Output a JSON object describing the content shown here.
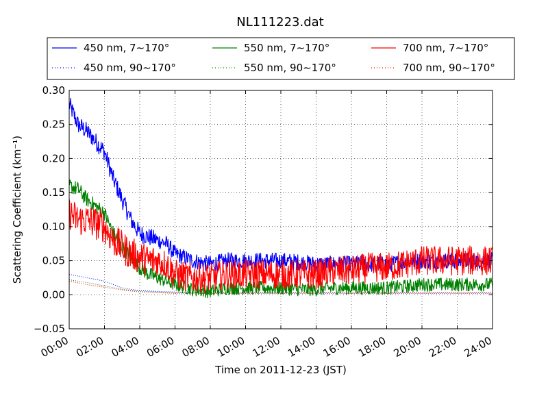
{
  "chart_data": {
    "type": "line",
    "title": "NL111223.dat",
    "xlabel": "Time on 2011-12-23 (JST)",
    "ylabel": "Scattering Coefficient (km⁻¹)",
    "xlim": [
      "00:00",
      "24:00"
    ],
    "ylim": [
      -0.05,
      0.3
    ],
    "x_ticks": [
      "00:00",
      "02:00",
      "04:00",
      "06:00",
      "08:00",
      "10:00",
      "12:00",
      "14:00",
      "16:00",
      "18:00",
      "20:00",
      "22:00",
      "24:00"
    ],
    "y_ticks": [
      "−0.05",
      "0.00",
      "0.05",
      "0.10",
      "0.15",
      "0.20",
      "0.25",
      "0.30"
    ],
    "grid": true,
    "legend_position": "top",
    "series": [
      {
        "name": "450 nm, 7∼170°",
        "color": "#0000ff",
        "style": "solid",
        "x": [
          "00:00",
          "00:30",
          "01:00",
          "01:30",
          "02:00",
          "02:30",
          "03:00",
          "03:30",
          "04:00",
          "04:30",
          "05:00",
          "05:30",
          "06:00",
          "07:00",
          "08:00",
          "09:00",
          "10:00",
          "11:00",
          "12:00",
          "13:00",
          "14:00",
          "15:00",
          "16:00",
          "17:00",
          "18:00",
          "19:00",
          "20:00",
          "21:00",
          "22:00",
          "23:00",
          "24:00"
        ],
        "y": [
          0.28,
          0.25,
          0.24,
          0.225,
          0.21,
          0.17,
          0.14,
          0.11,
          0.09,
          0.085,
          0.08,
          0.075,
          0.06,
          0.05,
          0.045,
          0.05,
          0.05,
          0.05,
          0.05,
          0.048,
          0.045,
          0.045,
          0.045,
          0.045,
          0.045,
          0.048,
          0.05,
          0.05,
          0.05,
          0.05,
          0.05
        ]
      },
      {
        "name": "450 nm, 90∼170°",
        "color": "#0000ff",
        "style": "dotted",
        "x": [
          "00:00",
          "01:00",
          "02:00",
          "03:00",
          "04:00",
          "05:00",
          "06:00",
          "08:00",
          "12:00",
          "16:00",
          "20:00",
          "24:00"
        ],
        "y": [
          0.03,
          0.025,
          0.02,
          0.01,
          0.006,
          0.005,
          0.004,
          0.003,
          0.003,
          0.003,
          0.003,
          0.003
        ]
      },
      {
        "name": "550 nm, 7∼170°",
        "color": "#008000",
        "style": "solid",
        "x": [
          "00:00",
          "00:30",
          "01:00",
          "01:30",
          "02:00",
          "02:30",
          "03:00",
          "03:30",
          "04:00",
          "04:30",
          "05:00",
          "05:30",
          "06:00",
          "07:00",
          "08:00",
          "09:00",
          "10:00",
          "11:00",
          "12:00",
          "13:00",
          "14:00",
          "15:00",
          "16:00",
          "17:00",
          "18:00",
          "19:00",
          "20:00",
          "21:00",
          "22:00",
          "23:00",
          "24:00"
        ],
        "y": [
          0.16,
          0.155,
          0.14,
          0.13,
          0.12,
          0.09,
          0.07,
          0.055,
          0.04,
          0.03,
          0.025,
          0.02,
          0.015,
          0.008,
          0.005,
          0.01,
          0.01,
          0.01,
          0.01,
          0.008,
          0.008,
          0.01,
          0.01,
          0.01,
          0.01,
          0.012,
          0.015,
          0.015,
          0.015,
          0.015,
          0.015
        ]
      },
      {
        "name": "550 nm, 90∼170°",
        "color": "#008000",
        "style": "dotted",
        "x": [
          "00:00",
          "01:00",
          "02:00",
          "03:00",
          "04:00",
          "05:00",
          "06:00",
          "08:00",
          "12:00",
          "16:00",
          "20:00",
          "24:00"
        ],
        "y": [
          0.022,
          0.018,
          0.013,
          0.008,
          0.005,
          0.004,
          0.003,
          0.002,
          0.002,
          0.002,
          0.002,
          0.002
        ]
      },
      {
        "name": "700 nm, 7∼170°",
        "color": "#ff0000",
        "style": "solid",
        "x": [
          "00:00",
          "00:30",
          "01:00",
          "01:30",
          "02:00",
          "02:30",
          "03:00",
          "03:30",
          "04:00",
          "04:30",
          "05:00",
          "05:30",
          "06:00",
          "07:00",
          "08:00",
          "09:00",
          "10:00",
          "11:00",
          "12:00",
          "13:00",
          "14:00",
          "15:00",
          "16:00",
          "17:00",
          "18:00",
          "19:00",
          "20:00",
          "21:00",
          "22:00",
          "23:00",
          "24:00"
        ],
        "y": [
          0.12,
          0.11,
          0.11,
          0.105,
          0.1,
          0.08,
          0.07,
          0.06,
          0.055,
          0.05,
          0.05,
          0.045,
          0.03,
          0.025,
          0.025,
          0.03,
          0.03,
          0.03,
          0.03,
          0.03,
          0.03,
          0.035,
          0.035,
          0.04,
          0.04,
          0.045,
          0.05,
          0.05,
          0.05,
          0.05,
          0.05
        ]
      },
      {
        "name": "700 nm, 90∼170°",
        "color": "#ff0000",
        "style": "dotted",
        "x": [
          "00:00",
          "01:00",
          "02:00",
          "03:00",
          "04:00",
          "05:00",
          "06:00",
          "08:00",
          "12:00",
          "16:00",
          "20:00",
          "24:00"
        ],
        "y": [
          0.02,
          0.015,
          0.011,
          0.007,
          0.004,
          0.003,
          0.002,
          0.002,
          0.002,
          0.002,
          0.002,
          0.002
        ]
      }
    ]
  }
}
